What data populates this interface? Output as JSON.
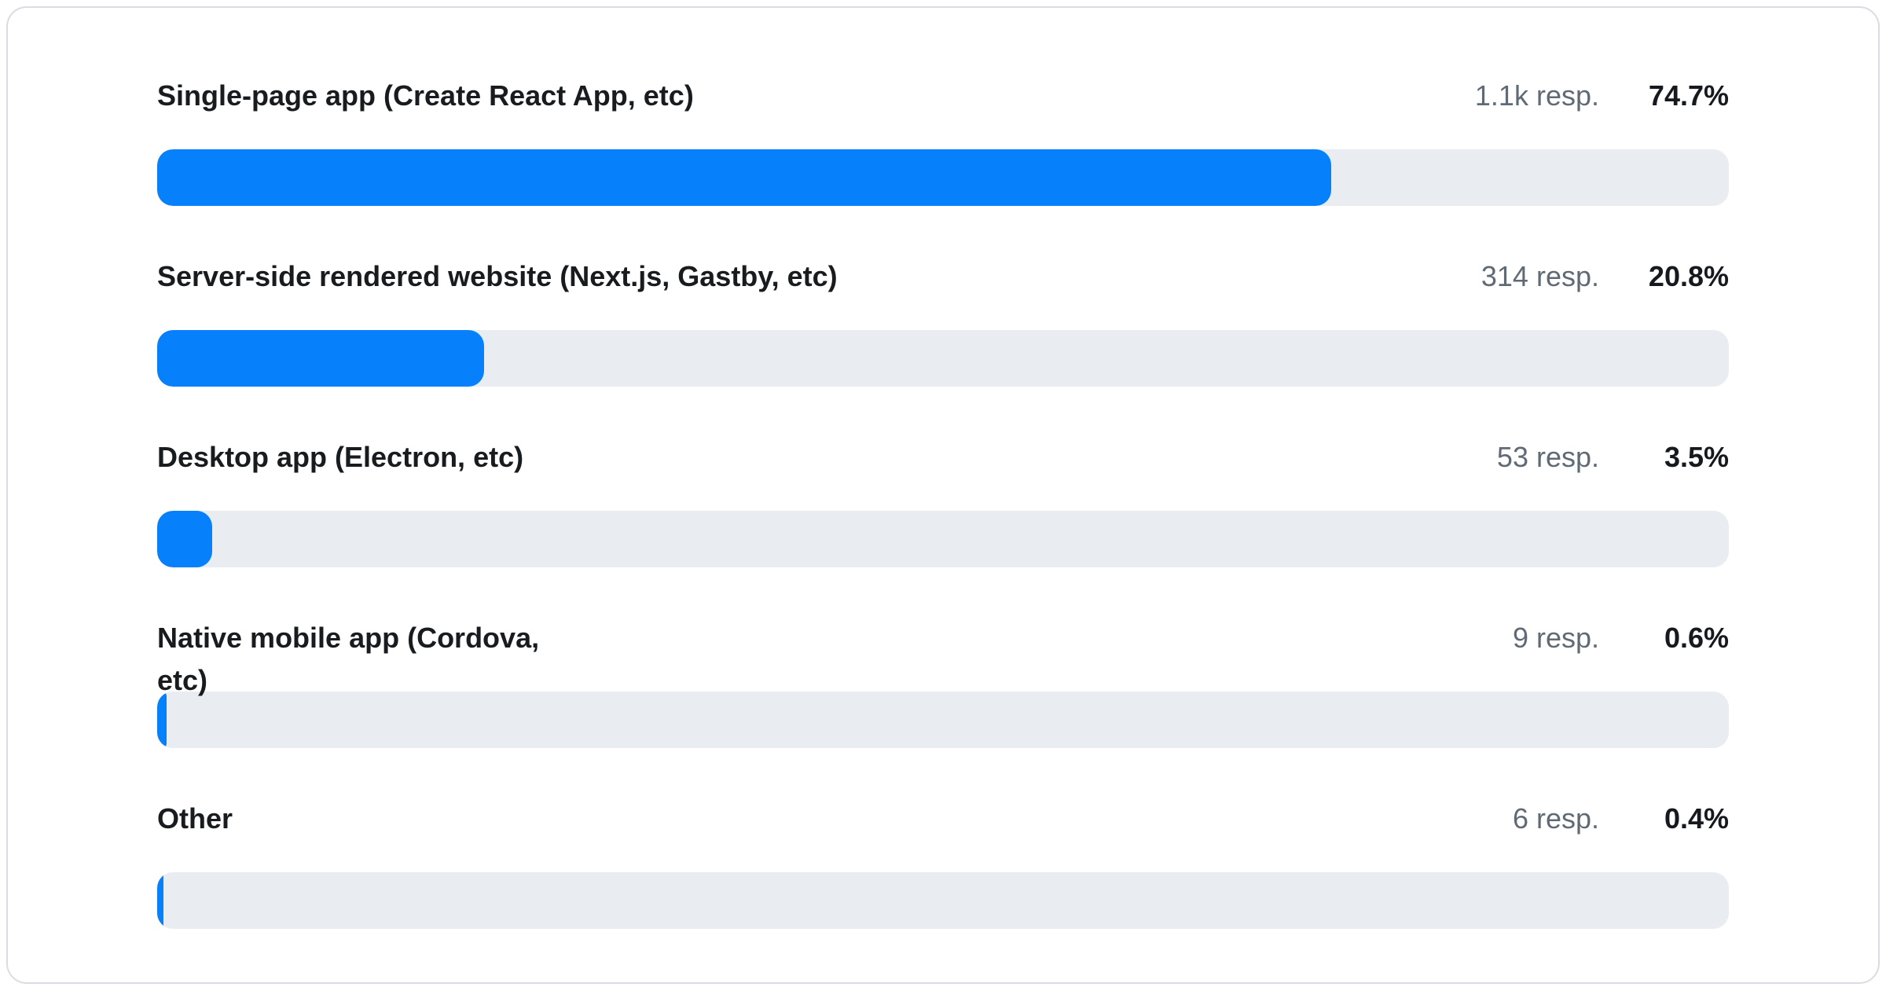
{
  "colors": {
    "bar_fill": "#0680fb",
    "bar_track": "#e9ecf0",
    "label_text": "#191c1f",
    "responses_text": "#5f6a75",
    "percent_text": "#16191d",
    "card_border": "#d9dde2"
  },
  "rows": [
    {
      "label": "Single-page app (Create React App, etc)",
      "responses": "1.1k resp.",
      "percent_label": "74.7%",
      "percent": 74.7
    },
    {
      "label": "Server-side rendered website (Next.js, Gastby, etc)",
      "responses": "314 resp.",
      "percent_label": "20.8%",
      "percent": 20.8
    },
    {
      "label": "Desktop app (Electron, etc)",
      "responses": "53 resp.",
      "percent_label": "3.5%",
      "percent": 3.5
    },
    {
      "label": "Native mobile app (Cordova,\netc)",
      "responses": "9 resp.",
      "percent_label": "0.6%",
      "percent": 0.6
    },
    {
      "label": "Other",
      "responses": "6 resp.",
      "percent_label": "0.4%",
      "percent": 0.4
    }
  ],
  "chart_data": {
    "type": "bar",
    "orientation": "horizontal",
    "title": "",
    "xlabel": "",
    "ylabel": "",
    "xlim": [
      0,
      100
    ],
    "grid": false,
    "legend": "none",
    "categories": [
      "Single-page app (Create React App, etc)",
      "Server-side rendered website (Next.js, Gastby, etc)",
      "Desktop app (Electron, etc)",
      "Native mobile app (Cordova, etc)",
      "Other"
    ],
    "series": [
      {
        "name": "percent_of_responses",
        "values": [
          74.7,
          20.8,
          3.5,
          0.6,
          0.4
        ]
      },
      {
        "name": "response_counts",
        "values": [
          1100,
          314,
          53,
          9,
          6
        ]
      }
    ],
    "response_count_labels": [
      "1.1k resp.",
      "314 resp.",
      "53 resp.",
      "9 resp.",
      "6 resp."
    ],
    "percent_labels": [
      "74.7%",
      "20.8%",
      "3.5%",
      "0.6%",
      "0.4%"
    ]
  }
}
